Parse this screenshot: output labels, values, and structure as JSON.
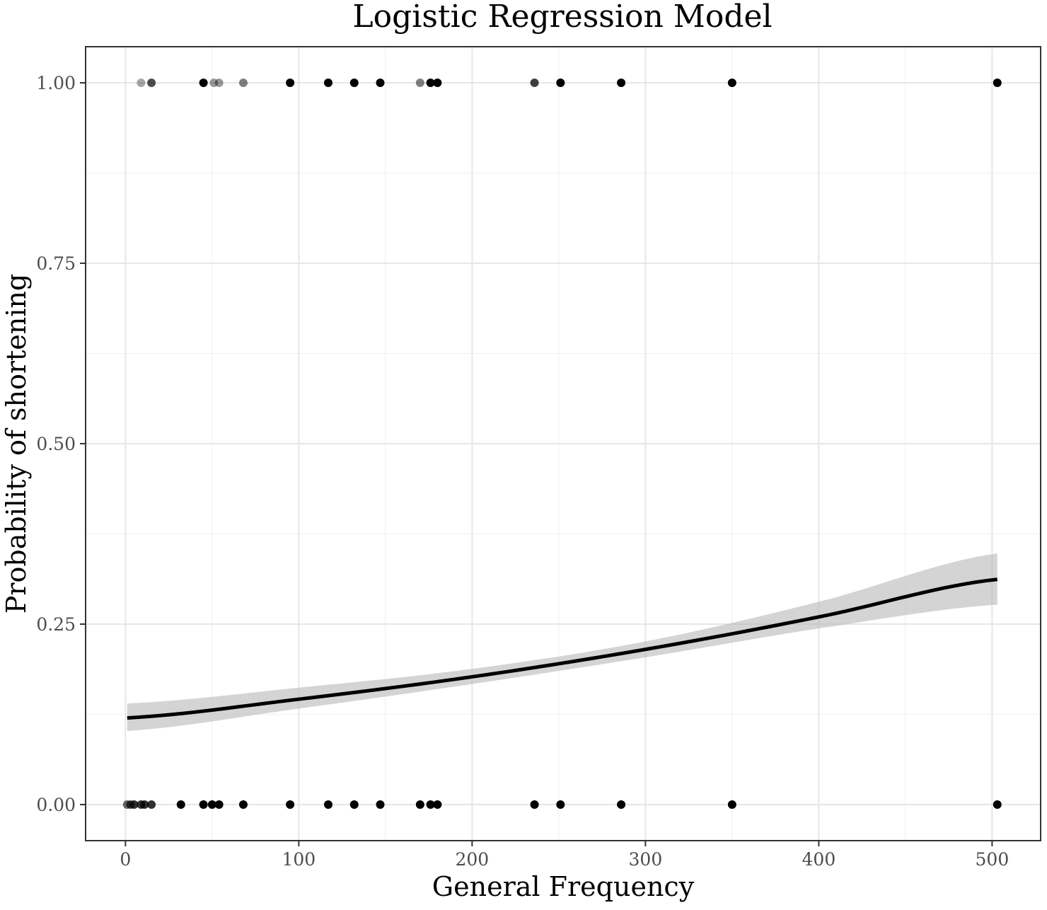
{
  "chart_data": {
    "type": "scatter",
    "title": "Logistic Regression Model",
    "xlabel": "General Frequency",
    "ylabel": "Probability of shortening",
    "xlim": [
      -23,
      528
    ],
    "ylim": [
      -0.05,
      1.05
    ],
    "x_ticks": [
      0,
      100,
      200,
      300,
      400,
      500
    ],
    "x_tick_labels": [
      "0",
      "100",
      "200",
      "300",
      "400",
      "500"
    ],
    "y_ticks": [
      0,
      0.25,
      0.5,
      0.75,
      1
    ],
    "y_tick_labels": [
      "0.00",
      "0.25",
      "0.50",
      "0.75",
      "1.00"
    ],
    "grid": true,
    "legend": "none",
    "points_y1": [
      {
        "x": 9,
        "opacity": 0.35
      },
      {
        "x": 15,
        "opacity": 0.7
      },
      {
        "x": 45,
        "opacity": 1
      },
      {
        "x": 51,
        "opacity": 0.4
      },
      {
        "x": 54,
        "opacity": 0.4
      },
      {
        "x": 68,
        "opacity": 0.5
      },
      {
        "x": 95,
        "opacity": 1
      },
      {
        "x": 117,
        "opacity": 1
      },
      {
        "x": 132,
        "opacity": 1
      },
      {
        "x": 147,
        "opacity": 1
      },
      {
        "x": 170,
        "opacity": 0.5
      },
      {
        "x": 176,
        "opacity": 1
      },
      {
        "x": 180,
        "opacity": 1
      },
      {
        "x": 236,
        "opacity": 0.75
      },
      {
        "x": 251,
        "opacity": 1
      },
      {
        "x": 286,
        "opacity": 1
      },
      {
        "x": 350,
        "opacity": 1
      },
      {
        "x": 503,
        "opacity": 1
      }
    ],
    "points_y0": [
      {
        "x": 1,
        "opacity": 0.6
      },
      {
        "x": 3,
        "opacity": 0.7
      },
      {
        "x": 5,
        "opacity": 0.8
      },
      {
        "x": 9,
        "opacity": 0.8
      },
      {
        "x": 11,
        "opacity": 0.8
      },
      {
        "x": 15,
        "opacity": 0.8
      },
      {
        "x": 32,
        "opacity": 1
      },
      {
        "x": 45,
        "opacity": 1
      },
      {
        "x": 50,
        "opacity": 1
      },
      {
        "x": 54,
        "opacity": 1
      },
      {
        "x": 68,
        "opacity": 1
      },
      {
        "x": 95,
        "opacity": 1
      },
      {
        "x": 117,
        "opacity": 1
      },
      {
        "x": 132,
        "opacity": 1
      },
      {
        "x": 147,
        "opacity": 1
      },
      {
        "x": 170,
        "opacity": 1
      },
      {
        "x": 176,
        "opacity": 1
      },
      {
        "x": 180,
        "opacity": 1
      },
      {
        "x": 236,
        "opacity": 1
      },
      {
        "x": 251,
        "opacity": 1
      },
      {
        "x": 286,
        "opacity": 1
      },
      {
        "x": 350,
        "opacity": 1
      },
      {
        "x": 503,
        "opacity": 1
      }
    ],
    "fit_line": {
      "x": [
        1,
        100,
        200,
        300,
        400,
        503
      ],
      "y": [
        0.12,
        0.146,
        0.177,
        0.215,
        0.26,
        0.312
      ],
      "lower": [
        0.102,
        0.133,
        0.167,
        0.204,
        0.244,
        0.277
      ],
      "upper": [
        0.14,
        0.162,
        0.188,
        0.226,
        0.281,
        0.348
      ]
    },
    "colors": {
      "point": "#000000",
      "line": "#000000",
      "ribbon": "#bdbdbd"
    }
  }
}
